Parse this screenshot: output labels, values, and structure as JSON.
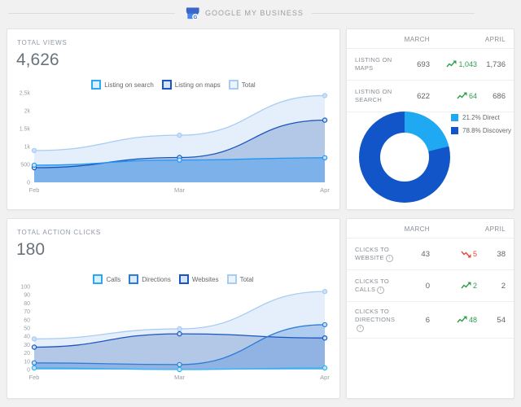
{
  "header": {
    "title": "GOOGLE MY BUSINESS"
  },
  "icons": {
    "info": "i",
    "logo_letter": "G"
  },
  "views_panel": {
    "title": "TOTAL VIEWS",
    "total": "4,626",
    "legend": [
      {
        "label": "Listing on search",
        "border": "#2ba8f2",
        "bg": "#d9f0fd"
      },
      {
        "label": "Listing on maps",
        "border": "#1a56c0",
        "bg": "#d7e3f6"
      },
      {
        "label": "Total",
        "border": "#a9ccf1",
        "bg": "#edf4fc"
      }
    ]
  },
  "views_table": {
    "columns": [
      "MARCH",
      "APRIL"
    ],
    "rows": [
      {
        "label": "LISTING ON MAPS",
        "march": "693",
        "change": "1,043",
        "trend": "up",
        "april": "1,736"
      },
      {
        "label": "LISTING ON SEARCH",
        "march": "622",
        "change": "64",
        "trend": "up",
        "april": "686"
      }
    ]
  },
  "donut_legend": [
    {
      "label": "21.2% Direct",
      "color": "#1fa9f2"
    },
    {
      "label": "78.8% Discovery",
      "color": "#1155c9"
    }
  ],
  "actions_panel": {
    "title": "TOTAL ACTION CLICKS",
    "total": "180",
    "legend": [
      {
        "label": "Calls",
        "border": "#2ba8f2",
        "bg": "#d9f0fd"
      },
      {
        "label": "Directions",
        "border": "#2e7cd6",
        "bg": "#dceafa"
      },
      {
        "label": "Websites",
        "border": "#1a56c0",
        "bg": "#d7e3f6"
      },
      {
        "label": "Total",
        "border": "#a9ccf1",
        "bg": "#edf4fc"
      }
    ]
  },
  "actions_table": {
    "columns": [
      "MARCH",
      "APRIL"
    ],
    "rows": [
      {
        "label": "CLICKS TO WEBSITE",
        "march": "43",
        "change": "5",
        "trend": "down",
        "april": "38"
      },
      {
        "label": "CLICKS TO CALLS",
        "march": "0",
        "change": "2",
        "trend": "up",
        "april": "2"
      },
      {
        "label": "CLICKS TO DIRECTIONS",
        "march": "6",
        "change": "48",
        "trend": "up",
        "april": "54"
      }
    ]
  },
  "chart_data": [
    {
      "type": "area",
      "title": "Total views by month",
      "x": [
        "Feb",
        "Mar",
        "Apr"
      ],
      "ylim": [
        0,
        2500
      ],
      "yticks": {
        "values": [
          0,
          500,
          1000,
          1500,
          2000,
          2500
        ],
        "labels": [
          "0",
          "500",
          "1k",
          "1.5k",
          "2k",
          "2.5k"
        ]
      },
      "grid": false,
      "legend_position": "top",
      "series": [
        {
          "name": "Total",
          "values": [
            889,
            1315,
            2422
          ],
          "line": "#a9ccf1",
          "fill": "rgba(201,224,248,0.50)"
        },
        {
          "name": "Listing on maps",
          "values": [
            409,
            693,
            1736
          ],
          "line": "#1a56c0",
          "fill": "rgba(77,116,189,0.32)"
        },
        {
          "name": "Listing on search",
          "values": [
            480,
            622,
            686
          ],
          "line": "#2196f3",
          "fill": "rgba(71,156,235,0.50)"
        }
      ]
    },
    {
      "type": "area",
      "title": "Total action clicks by month",
      "x": [
        "Feb",
        "Mar",
        "Apr"
      ],
      "ylim": [
        0,
        100
      ],
      "yticks": {
        "values": [
          0,
          10,
          20,
          30,
          40,
          50,
          60,
          70,
          80,
          90,
          100
        ],
        "labels": [
          "0",
          "10",
          "20",
          "30",
          "40",
          "50",
          "60",
          "70",
          "80",
          "90",
          "100"
        ]
      },
      "grid": false,
      "legend_position": "top",
      "series": [
        {
          "name": "Total",
          "values": [
            37,
            49,
            94
          ],
          "line": "#a9ccf1",
          "fill": "rgba(201,224,248,0.50)"
        },
        {
          "name": "Websites",
          "values": [
            27,
            43,
            38
          ],
          "line": "#1a56c0",
          "fill": "rgba(77,116,189,0.32)"
        },
        {
          "name": "Directions",
          "values": [
            8,
            6,
            54
          ],
          "line": "#2e7cd6",
          "fill": "rgba(88,146,224,0.38)"
        },
        {
          "name": "Calls",
          "values": [
            2,
            0,
            2
          ],
          "line": "#29b6f6",
          "fill": "rgba(96,186,246,0.50)"
        }
      ]
    },
    {
      "type": "donut",
      "slices": [
        {
          "label": "Direct",
          "pct": 21.2,
          "color": "#1fa9f2"
        },
        {
          "label": "Discovery",
          "pct": 78.8,
          "color": "#1155c9"
        }
      ]
    }
  ]
}
